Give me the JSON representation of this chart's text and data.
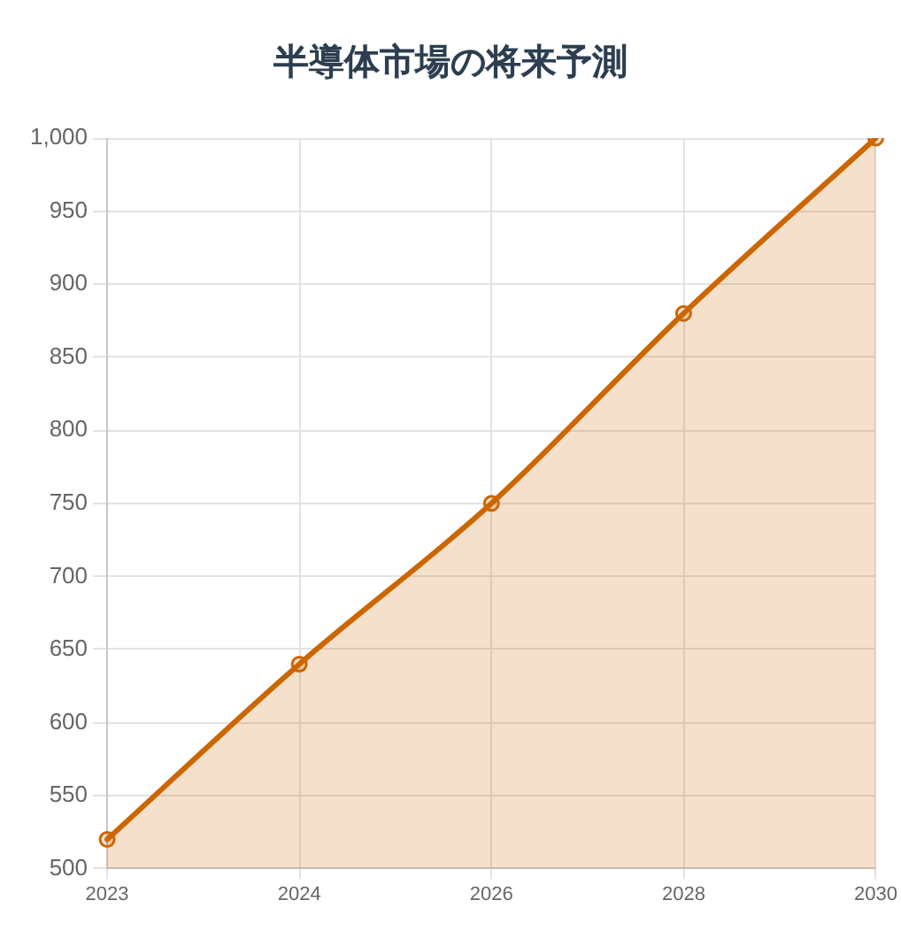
{
  "chart_data": {
    "type": "area",
    "title": "半導体市場の将来予測",
    "categories": [
      "2023",
      "2024",
      "2026",
      "2028",
      "2030"
    ],
    "values": [
      520,
      640,
      750,
      880,
      1000
    ],
    "color": "#cc6600",
    "ylim": [
      500,
      1000
    ],
    "yticks": [
      500,
      550,
      600,
      650,
      700,
      750,
      800,
      850,
      900,
      950,
      {
        "value": 1000,
        "label": "1,000"
      }
    ],
    "grid": true,
    "marker": "circle",
    "line_style": "solid"
  }
}
